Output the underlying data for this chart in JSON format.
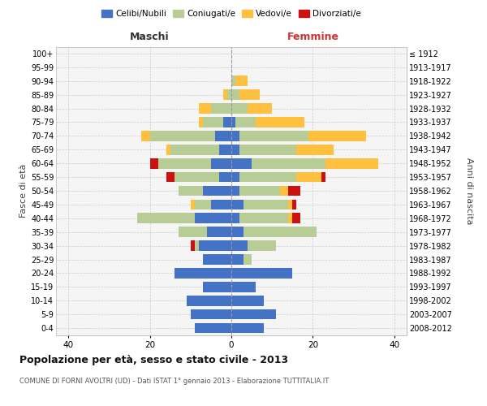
{
  "age_groups": [
    "100+",
    "95-99",
    "90-94",
    "85-89",
    "80-84",
    "75-79",
    "70-74",
    "65-69",
    "60-64",
    "55-59",
    "50-54",
    "45-49",
    "40-44",
    "35-39",
    "30-34",
    "25-29",
    "20-24",
    "15-19",
    "10-14",
    "5-9",
    "0-4"
  ],
  "birth_years": [
    "≤ 1912",
    "1913-1917",
    "1918-1922",
    "1923-1927",
    "1928-1932",
    "1933-1937",
    "1938-1942",
    "1943-1947",
    "1948-1952",
    "1953-1957",
    "1958-1962",
    "1963-1967",
    "1968-1972",
    "1973-1977",
    "1978-1982",
    "1983-1987",
    "1988-1992",
    "1993-1997",
    "1998-2002",
    "2003-2007",
    "2008-2012"
  ],
  "maschi": {
    "celibi": [
      0,
      0,
      0,
      0,
      0,
      2,
      4,
      3,
      5,
      3,
      7,
      5,
      9,
      6,
      8,
      7,
      14,
      7,
      11,
      10,
      9
    ],
    "coniugati": [
      0,
      0,
      0,
      1,
      5,
      5,
      16,
      12,
      13,
      11,
      6,
      4,
      14,
      7,
      1,
      0,
      0,
      0,
      0,
      0,
      0
    ],
    "vedovi": [
      0,
      0,
      0,
      1,
      3,
      1,
      2,
      1,
      0,
      0,
      0,
      1,
      0,
      0,
      0,
      0,
      0,
      0,
      0,
      0,
      0
    ],
    "divorziati": [
      0,
      0,
      0,
      0,
      0,
      0,
      0,
      0,
      2,
      2,
      0,
      0,
      0,
      0,
      1,
      0,
      0,
      0,
      0,
      0,
      0
    ]
  },
  "femmine": {
    "nubili": [
      0,
      0,
      0,
      0,
      0,
      1,
      2,
      2,
      5,
      2,
      2,
      3,
      2,
      3,
      4,
      3,
      15,
      6,
      8,
      11,
      8
    ],
    "coniugate": [
      0,
      0,
      1,
      2,
      4,
      5,
      17,
      14,
      18,
      14,
      10,
      11,
      12,
      18,
      7,
      2,
      0,
      0,
      0,
      0,
      0
    ],
    "vedove": [
      0,
      0,
      3,
      5,
      6,
      12,
      14,
      9,
      13,
      6,
      2,
      1,
      1,
      0,
      0,
      0,
      0,
      0,
      0,
      0,
      0
    ],
    "divorziate": [
      0,
      0,
      0,
      0,
      0,
      0,
      0,
      0,
      0,
      1,
      3,
      1,
      2,
      0,
      0,
      0,
      0,
      0,
      0,
      0,
      0
    ]
  },
  "colors": {
    "celibi_nubili": "#4472c4",
    "coniugati": "#b8cc96",
    "vedovi": "#ffc040",
    "divorziati": "#cc1111"
  },
  "xlim": 43,
  "title": "Popolazione per età, sesso e stato civile - 2013",
  "subtitle": "COMUNE DI FORNI AVOLTRI (UD) - Dati ISTAT 1° gennaio 2013 - Elaborazione TUTTITALIA.IT",
  "ylabel_left": "Fasce di età",
  "ylabel_right": "Anni di nascita",
  "xlabel_maschi": "Maschi",
  "xlabel_femmine": "Femmine",
  "legend_labels": [
    "Celibi/Nubili",
    "Coniugati/e",
    "Vedovi/e",
    "Divorziati/e"
  ],
  "bar_height": 0.75
}
